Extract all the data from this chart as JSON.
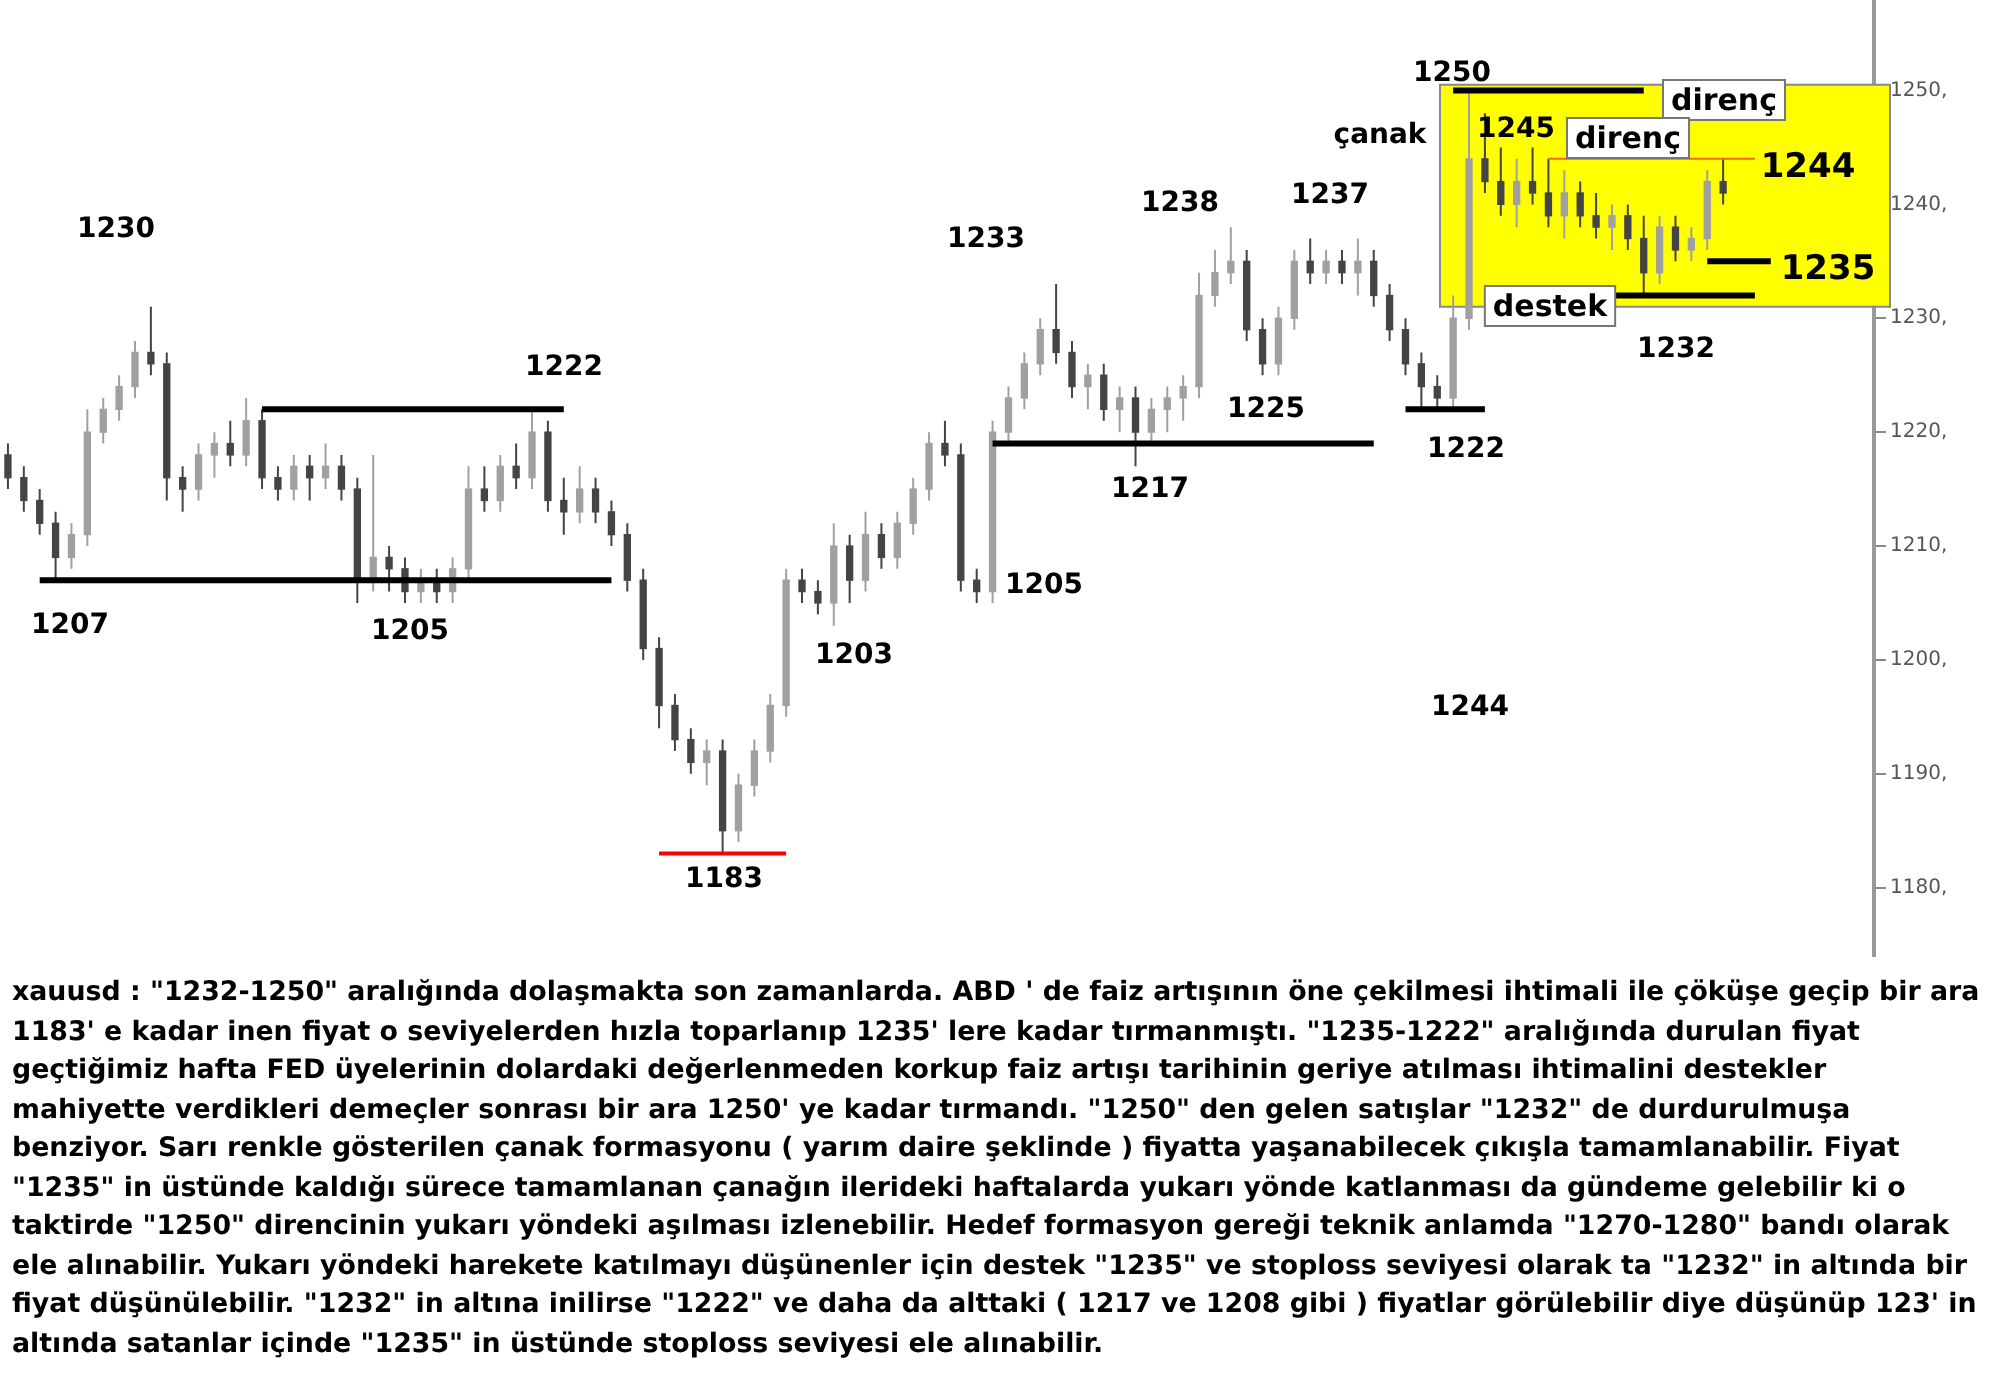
{
  "chart_data": {
    "type": "candlestick",
    "categories": [
      null,
      null,
      null,
      null,
      null,
      null,
      null,
      null,
      null,
      null,
      null,
      null,
      null,
      null,
      null,
      null,
      null,
      null,
      null,
      null,
      null,
      null,
      null,
      null,
      null,
      null,
      null,
      null,
      null,
      null,
      null,
      null,
      null,
      null,
      null,
      null,
      null,
      null,
      null,
      null,
      null,
      null,
      null,
      null,
      null,
      null,
      null,
      null,
      null,
      null,
      null,
      null,
      null,
      null,
      null,
      null,
      null,
      null,
      null,
      null,
      null,
      null,
      null,
      null,
      null,
      null,
      null,
      null,
      null,
      null,
      null,
      null,
      null,
      null,
      null,
      null,
      null,
      null,
      null,
      null,
      null,
      null,
      null,
      null,
      null,
      null,
      null,
      null,
      null,
      null,
      null,
      null,
      null,
      null,
      null,
      null,
      null,
      null,
      null,
      null,
      null,
      null,
      null,
      null,
      null,
      null,
      null,
      null,
      null,
      null,
      null,
      null,
      null,
      null,
      null,
      null,
      null,
      null
    ],
    "ohlc": [
      [
        1218,
        1219,
        1215,
        1216
      ],
      [
        1216,
        1217,
        1213,
        1214
      ],
      [
        1214,
        1215,
        1211,
        1212
      ],
      [
        1212,
        1213,
        1207,
        1209
      ],
      [
        1209,
        1212,
        1208,
        1211
      ],
      [
        1211,
        1222,
        1210,
        1220
      ],
      [
        1220,
        1223,
        1219,
        1222
      ],
      [
        1222,
        1225,
        1221,
        1224
      ],
      [
        1224,
        1228,
        1223,
        1227
      ],
      [
        1227,
        1231,
        1225,
        1226
      ],
      [
        1226,
        1227,
        1214,
        1216
      ],
      [
        1216,
        1217,
        1213,
        1215
      ],
      [
        1215,
        1219,
        1214,
        1218
      ],
      [
        1218,
        1220,
        1216,
        1219
      ],
      [
        1219,
        1221,
        1217,
        1218
      ],
      [
        1218,
        1223,
        1217,
        1221
      ],
      [
        1221,
        1222,
        1215,
        1216
      ],
      [
        1216,
        1217,
        1214,
        1215
      ],
      [
        1215,
        1218,
        1214,
        1217
      ],
      [
        1217,
        1218,
        1214,
        1216
      ],
      [
        1216,
        1219,
        1215,
        1217
      ],
      [
        1217,
        1218,
        1214,
        1215
      ],
      [
        1215,
        1216,
        1205,
        1207
      ],
      [
        1207,
        1218,
        1206,
        1209
      ],
      [
        1209,
        1210,
        1206,
        1208
      ],
      [
        1208,
        1209,
        1205,
        1206
      ],
      [
        1206,
        1208,
        1205,
        1207
      ],
      [
        1207,
        1208,
        1205,
        1206
      ],
      [
        1206,
        1209,
        1205,
        1208
      ],
      [
        1208,
        1217,
        1207,
        1215
      ],
      [
        1215,
        1217,
        1213,
        1214
      ],
      [
        1214,
        1218,
        1213,
        1217
      ],
      [
        1217,
        1219,
        1215,
        1216
      ],
      [
        1216,
        1222,
        1215,
        1220
      ],
      [
        1220,
        1221,
        1213,
        1214
      ],
      [
        1214,
        1216,
        1211,
        1213
      ],
      [
        1213,
        1217,
        1212,
        1215
      ],
      [
        1215,
        1216,
        1212,
        1213
      ],
      [
        1213,
        1214,
        1210,
        1211
      ],
      [
        1211,
        1212,
        1206,
        1207
      ],
      [
        1207,
        1208,
        1200,
        1201
      ],
      [
        1201,
        1202,
        1194,
        1196
      ],
      [
        1196,
        1197,
        1192,
        1193
      ],
      [
        1193,
        1194,
        1190,
        1191
      ],
      [
        1191,
        1193,
        1189,
        1192
      ],
      [
        1192,
        1193,
        1183,
        1185
      ],
      [
        1185,
        1190,
        1184,
        1189
      ],
      [
        1189,
        1193,
        1188,
        1192
      ],
      [
        1192,
        1197,
        1191,
        1196
      ],
      [
        1196,
        1208,
        1195,
        1207
      ],
      [
        1207,
        1208,
        1205,
        1206
      ],
      [
        1206,
        1207,
        1204,
        1205
      ],
      [
        1205,
        1212,
        1203,
        1210
      ],
      [
        1210,
        1211,
        1205,
        1207
      ],
      [
        1207,
        1213,
        1206,
        1211
      ],
      [
        1211,
        1212,
        1208,
        1209
      ],
      [
        1209,
        1213,
        1208,
        1212
      ],
      [
        1212,
        1216,
        1211,
        1215
      ],
      [
        1215,
        1220,
        1214,
        1219
      ],
      [
        1219,
        1221,
        1217,
        1218
      ],
      [
        1218,
        1219,
        1206,
        1207
      ],
      [
        1207,
        1208,
        1205,
        1206
      ],
      [
        1206,
        1221,
        1205,
        1220
      ],
      [
        1220,
        1224,
        1219,
        1223
      ],
      [
        1223,
        1227,
        1222,
        1226
      ],
      [
        1226,
        1230,
        1225,
        1229
      ],
      [
        1229,
        1233,
        1226,
        1227
      ],
      [
        1227,
        1228,
        1223,
        1224
      ],
      [
        1224,
        1226,
        1222,
        1225
      ],
      [
        1225,
        1226,
        1221,
        1222
      ],
      [
        1222,
        1224,
        1220,
        1223
      ],
      [
        1223,
        1224,
        1217,
        1220
      ],
      [
        1220,
        1223,
        1219,
        1222
      ],
      [
        1222,
        1224,
        1220,
        1223
      ],
      [
        1223,
        1225,
        1221,
        1224
      ],
      [
        1224,
        1234,
        1223,
        1232
      ],
      [
        1232,
        1236,
        1231,
        1234
      ],
      [
        1234,
        1238,
        1233,
        1235
      ],
      [
        1235,
        1236,
        1228,
        1229
      ],
      [
        1229,
        1230,
        1225,
        1226
      ],
      [
        1226,
        1231,
        1225,
        1230
      ],
      [
        1230,
        1236,
        1229,
        1235
      ],
      [
        1235,
        1237,
        1233,
        1234
      ],
      [
        1234,
        1236,
        1233,
        1235
      ],
      [
        1235,
        1236,
        1233,
        1234
      ],
      [
        1234,
        1237,
        1232,
        1235
      ],
      [
        1235,
        1236,
        1231,
        1232
      ],
      [
        1232,
        1233,
        1228,
        1229
      ],
      [
        1229,
        1230,
        1225,
        1226
      ],
      [
        1226,
        1227,
        1222,
        1224
      ],
      [
        1224,
        1225,
        1222,
        1223
      ],
      [
        1223,
        1232,
        1222,
        1230
      ],
      [
        1230,
        1250,
        1229,
        1244
      ],
      [
        1244,
        1248,
        1241,
        1242
      ],
      [
        1242,
        1245,
        1239,
        1240
      ],
      [
        1240,
        1244,
        1238,
        1242
      ],
      [
        1242,
        1245,
        1240,
        1241
      ],
      [
        1241,
        1244,
        1238,
        1239
      ],
      [
        1239,
        1243,
        1237,
        1241
      ],
      [
        1241,
        1242,
        1238,
        1239
      ],
      [
        1239,
        1241,
        1237,
        1238
      ],
      [
        1238,
        1240,
        1236,
        1239
      ],
      [
        1239,
        1240,
        1236,
        1237
      ],
      [
        1237,
        1239,
        1232,
        1234
      ],
      [
        1234,
        1239,
        1233,
        1238
      ],
      [
        1238,
        1239,
        1235,
        1236
      ],
      [
        1236,
        1238,
        1235,
        1237
      ],
      [
        1237,
        1243,
        1236,
        1242
      ],
      [
        1242,
        1244,
        1240,
        1241
      ],
      null,
      null,
      null,
      null,
      null,
      null,
      null,
      null,
      null
    ],
    "colors": [
      "#444444",
      "#444444",
      "#444444",
      "#444444",
      "#a0a0a0",
      "#a0a0a0",
      "#a0a0a0",
      "#a0a0a0",
      "#a0a0a0",
      "#444444",
      "#444444",
      "#444444",
      "#a0a0a0",
      "#a0a0a0",
      "#444444",
      "#a0a0a0",
      "#444444",
      "#444444",
      "#a0a0a0",
      "#444444",
      "#a0a0a0",
      "#444444",
      "#444444",
      "#a0a0a0",
      "#444444",
      "#444444",
      "#a0a0a0",
      "#444444",
      "#a0a0a0",
      "#a0a0a0",
      "#444444",
      "#a0a0a0",
      "#444444",
      "#a0a0a0",
      "#444444",
      "#444444",
      "#a0a0a0",
      "#444444",
      "#444444",
      "#444444",
      "#444444",
      "#444444",
      "#444444",
      "#444444",
      "#a0a0a0",
      "#444444",
      "#a0a0a0",
      "#a0a0a0",
      "#a0a0a0",
      "#a0a0a0",
      "#444444",
      "#444444",
      "#a0a0a0",
      "#444444",
      "#a0a0a0",
      "#444444",
      "#a0a0a0",
      "#a0a0a0",
      "#a0a0a0",
      "#444444",
      "#444444",
      "#444444",
      "#a0a0a0",
      "#a0a0a0",
      "#a0a0a0",
      "#a0a0a0",
      "#444444",
      "#444444",
      "#a0a0a0",
      "#444444",
      "#a0a0a0",
      "#444444",
      "#a0a0a0",
      "#a0a0a0",
      "#a0a0a0",
      "#a0a0a0",
      "#a0a0a0",
      "#a0a0a0",
      "#444444",
      "#444444",
      "#a0a0a0",
      "#a0a0a0",
      "#444444",
      "#a0a0a0",
      "#444444",
      "#a0a0a0",
      "#444444",
      "#444444",
      "#444444",
      "#444444",
      "#444444",
      "#a0a0a0",
      "#a0a0a0",
      "#444444",
      "#444444",
      "#a0a0a0",
      "#444444",
      "#444444",
      "#a0a0a0",
      "#444444",
      "#444444",
      "#a0a0a0",
      "#444444",
      "#444444",
      "#a0a0a0",
      "#444444",
      "#a0a0a0",
      "#a0a0a0",
      "#444444",
      null,
      null,
      null,
      null,
      null,
      null,
      null,
      null,
      null
    ],
    "series": [
      {
        "type": "line",
        "color": "#000000",
        "values": [
          null,
          null,
          1207,
          1207,
          1207,
          1207,
          1207,
          1207,
          1207,
          1207,
          1207,
          1207,
          1207,
          1207,
          1207,
          1207,
          1207,
          1207,
          1207,
          1207,
          1207,
          1207,
          1207,
          1207,
          1207,
          1207,
          1207,
          1207,
          1207,
          1207,
          1207,
          1207,
          1207,
          1207,
          1207,
          1207,
          1207,
          1207,
          1207,
          null,
          null,
          null,
          null,
          null,
          null,
          null,
          null,
          null,
          null,
          null,
          null,
          null,
          null,
          null,
          null,
          null,
          null,
          null,
          null,
          null,
          null,
          null,
          null,
          null,
          null,
          null,
          null,
          null,
          null,
          null,
          null,
          null,
          null,
          null,
          null,
          null,
          null,
          null,
          null,
          null,
          null,
          null,
          null,
          null,
          null,
          null,
          null,
          null,
          null,
          null,
          null,
          null,
          null,
          null,
          null,
          null,
          null,
          null,
          null,
          null,
          null,
          null,
          null,
          null,
          null,
          null,
          null,
          null,
          null,
          null,
          null,
          null,
          null,
          null,
          null,
          null,
          null,
          null
        ]
      },
      {
        "type": "line",
        "color": "#000000",
        "values": [
          null,
          null,
          null,
          null,
          null,
          null,
          null,
          null,
          null,
          null,
          null,
          null,
          null,
          null,
          null,
          null,
          1222,
          1222,
          1222,
          1222,
          1222,
          1222,
          1222,
          1222,
          1222,
          1222,
          1222,
          1222,
          1222,
          1222,
          1222,
          1222,
          1222,
          1222,
          1222,
          1222,
          null,
          null,
          null,
          null,
          null,
          null,
          null,
          null,
          null,
          null,
          null,
          null,
          null,
          null,
          null,
          null,
          null,
          null,
          null,
          null,
          null,
          null,
          null,
          null,
          null,
          null,
          null,
          null,
          null,
          null,
          null,
          null,
          null,
          null,
          null,
          null,
          null,
          null,
          null,
          null,
          null,
          null,
          null,
          null,
          null,
          null,
          null,
          null,
          null,
          null,
          null,
          null,
          null,
          null,
          null,
          null,
          null,
          null,
          null,
          null,
          null,
          null,
          null,
          null,
          null,
          null,
          null,
          null,
          null,
          null,
          null,
          null,
          null,
          null,
          null,
          null,
          null,
          null,
          null,
          null,
          null,
          null
        ]
      },
      {
        "type": "line",
        "color": "#000000",
        "values": [
          null,
          null,
          null,
          null,
          null,
          null,
          null,
          null,
          null,
          null,
          null,
          null,
          null,
          null,
          null,
          null,
          null,
          null,
          null,
          null,
          null,
          null,
          null,
          null,
          null,
          null,
          null,
          null,
          null,
          null,
          null,
          null,
          null,
          null,
          null,
          null,
          null,
          null,
          null,
          null,
          null,
          null,
          null,
          null,
          null,
          null,
          null,
          null,
          null,
          null,
          null,
          null,
          null,
          null,
          null,
          null,
          null,
          null,
          null,
          null,
          null,
          null,
          1219,
          1219,
          1219,
          1219,
          1219,
          1219,
          1219,
          1219,
          1219,
          1219,
          1219,
          1219,
          1219,
          1219,
          1219,
          1219,
          1219,
          1219,
          1219,
          1219,
          1219,
          1219,
          1219,
          1219,
          1219,
          null,
          null,
          null,
          null,
          null,
          null,
          null,
          null,
          null,
          null,
          null,
          null,
          null,
          null,
          null,
          null,
          null,
          null,
          null,
          null,
          null,
          null,
          null,
          null,
          null,
          null,
          null,
          null,
          null,
          null,
          null
        ]
      },
      {
        "type": "line",
        "color": "#ff0000",
        "values": [
          null,
          null,
          null,
          null,
          null,
          null,
          null,
          null,
          null,
          null,
          null,
          null,
          null,
          null,
          null,
          null,
          null,
          null,
          null,
          null,
          null,
          null,
          null,
          null,
          null,
          null,
          null,
          null,
          null,
          null,
          null,
          null,
          null,
          null,
          null,
          null,
          null,
          null,
          null,
          null,
          null,
          1183,
          1183,
          1183,
          1183,
          1183,
          1183,
          1183,
          1183,
          1183,
          null,
          null,
          null,
          null,
          null,
          null,
          null,
          null,
          null,
          null,
          null,
          null,
          null,
          null,
          null,
          null,
          null,
          null,
          null,
          null,
          null,
          null,
          null,
          null,
          null,
          null,
          null,
          null,
          null,
          null,
          null,
          null,
          null,
          null,
          null,
          null,
          null,
          null,
          null,
          null,
          null,
          null,
          null,
          null,
          null,
          null,
          null,
          null,
          null,
          null,
          null,
          null,
          null,
          null,
          null,
          null,
          null,
          null,
          null,
          null,
          null,
          null,
          null,
          null,
          null,
          null,
          null,
          null
        ]
      },
      {
        "type": "line",
        "color": "#000000",
        "values": [
          null,
          null,
          null,
          null,
          null,
          null,
          null,
          null,
          null,
          null,
          null,
          null,
          null,
          null,
          null,
          null,
          null,
          null,
          null,
          null,
          null,
          null,
          null,
          null,
          null,
          null,
          null,
          null,
          null,
          null,
          null,
          null,
          null,
          null,
          null,
          null,
          null,
          null,
          null,
          null,
          null,
          null,
          null,
          null,
          null,
          null,
          null,
          null,
          null,
          null,
          null,
          null,
          null,
          null,
          null,
          null,
          null,
          null,
          null,
          null,
          null,
          null,
          null,
          null,
          null,
          null,
          null,
          null,
          null,
          null,
          null,
          null,
          null,
          null,
          null,
          null,
          null,
          null,
          null,
          null,
          null,
          null,
          null,
          null,
          null,
          null,
          null,
          null,
          1222,
          1222,
          1222,
          1222,
          1222,
          1222,
          null,
          null,
          null,
          null,
          null,
          null,
          null,
          null,
          null,
          null,
          null,
          null,
          null,
          null,
          null,
          null,
          null,
          null,
          null,
          null,
          null,
          null,
          null,
          null
        ]
      },
      {
        "type": "line",
        "color": "#000000",
        "values": [
          null,
          null,
          null,
          null,
          null,
          null,
          null,
          null,
          null,
          null,
          null,
          null,
          null,
          null,
          null,
          null,
          null,
          null,
          null,
          null,
          null,
          null,
          null,
          null,
          null,
          null,
          null,
          null,
          null,
          null,
          null,
          null,
          null,
          null,
          null,
          null,
          null,
          null,
          null,
          null,
          null,
          null,
          null,
          null,
          null,
          null,
          null,
          null,
          null,
          null,
          null,
          null,
          null,
          null,
          null,
          null,
          null,
          null,
          null,
          null,
          null,
          null,
          null,
          null,
          null,
          null,
          null,
          null,
          null,
          null,
          null,
          null,
          null,
          null,
          null,
          null,
          null,
          null,
          null,
          null,
          null,
          null,
          null,
          null,
          null,
          null,
          null,
          null,
          null,
          null,
          null,
          1250,
          1250,
          1250,
          1250,
          1250,
          1250,
          1250,
          1250,
          1250,
          1250,
          1250,
          1250,
          1250,
          null,
          null,
          null,
          null,
          null,
          null,
          null,
          null,
          null,
          null,
          null,
          null,
          null,
          null
        ]
      },
      {
        "type": "line",
        "color": "#ff6600",
        "values": [
          null,
          null,
          null,
          null,
          null,
          null,
          null,
          null,
          null,
          null,
          null,
          null,
          null,
          null,
          null,
          null,
          null,
          null,
          null,
          null,
          null,
          null,
          null,
          null,
          null,
          null,
          null,
          null,
          null,
          null,
          null,
          null,
          null,
          null,
          null,
          null,
          null,
          null,
          null,
          null,
          null,
          null,
          null,
          null,
          null,
          null,
          null,
          null,
          null,
          null,
          null,
          null,
          null,
          null,
          null,
          null,
          null,
          null,
          null,
          null,
          null,
          null,
          null,
          null,
          null,
          null,
          null,
          null,
          null,
          null,
          null,
          null,
          null,
          null,
          null,
          null,
          null,
          null,
          null,
          null,
          null,
          null,
          null,
          null,
          null,
          null,
          null,
          null,
          null,
          null,
          null,
          null,
          null,
          null,
          null,
          null,
          null,
          1244,
          1244,
          1244,
          1244,
          1244,
          1244,
          1244,
          1244,
          1244,
          1244,
          1244,
          1244,
          1244,
          1244,
          null,
          null,
          null,
          null,
          null,
          null,
          null
        ]
      },
      {
        "type": "line",
        "color": "#000000",
        "values": [
          null,
          null,
          null,
          null,
          null,
          null,
          null,
          null,
          null,
          null,
          null,
          null,
          null,
          null,
          null,
          null,
          null,
          null,
          null,
          null,
          null,
          null,
          null,
          null,
          null,
          null,
          null,
          null,
          null,
          null,
          null,
          null,
          null,
          null,
          null,
          null,
          null,
          null,
          null,
          null,
          null,
          null,
          null,
          null,
          null,
          null,
          null,
          null,
          null,
          null,
          null,
          null,
          null,
          null,
          null,
          null,
          null,
          null,
          null,
          null,
          null,
          null,
          null,
          null,
          null,
          null,
          null,
          null,
          null,
          null,
          null,
          null,
          null,
          null,
          null,
          null,
          null,
          null,
          null,
          null,
          null,
          null,
          null,
          null,
          null,
          null,
          null,
          null,
          null,
          null,
          null,
          null,
          null,
          null,
          null,
          null,
          null,
          null,
          null,
          null,
          null,
          null,
          null,
          null,
          null,
          null,
          null,
          1235,
          1235,
          1235,
          1235,
          1235,
          null,
          null,
          null,
          null,
          null,
          null
        ]
      },
      {
        "type": "line",
        "color": "#000000",
        "values": [
          null,
          null,
          null,
          null,
          null,
          null,
          null,
          null,
          null,
          null,
          null,
          null,
          null,
          null,
          null,
          null,
          null,
          null,
          null,
          null,
          null,
          null,
          null,
          null,
          null,
          null,
          null,
          null,
          null,
          null,
          null,
          null,
          null,
          null,
          null,
          null,
          null,
          null,
          null,
          null,
          null,
          null,
          null,
          null,
          null,
          null,
          null,
          null,
          null,
          null,
          null,
          null,
          null,
          null,
          null,
          null,
          null,
          null,
          null,
          null,
          null,
          null,
          null,
          null,
          null,
          null,
          null,
          null,
          null,
          null,
          null,
          null,
          null,
          null,
          null,
          null,
          null,
          null,
          null,
          null,
          null,
          null,
          null,
          null,
          null,
          null,
          null,
          null,
          null,
          null,
          null,
          null,
          null,
          null,
          null,
          null,
          null,
          null,
          null,
          null,
          null,
          1232,
          1232,
          1232,
          1232,
          1232,
          1232,
          1232,
          1232,
          1232,
          1232,
          null,
          null,
          null,
          null,
          null,
          null,
          null
        ]
      }
    ],
    "ylim": [
      1174,
      1259
    ],
    "yticks": [
      {
        "value": 1180,
        "label": "1180,"
      },
      {
        "value": 1190,
        "label": "1190,"
      },
      {
        "value": 1200,
        "label": "1200,"
      },
      {
        "value": 1210,
        "label": "1210,"
      },
      {
        "value": 1220,
        "label": "1220,"
      },
      {
        "value": 1230,
        "label": "1230,"
      },
      {
        "value": 1240,
        "label": "1240,"
      },
      {
        "value": 1250,
        "label": "1250,"
      }
    ],
    "tick_labels": "y",
    "grid": false,
    "legend": false,
    "bands": [
      {
        "axis": "y",
        "from": 1231,
        "to": 1250.5,
        "color": "#ffff00"
      }
    ],
    "annotations": [
      "1230",
      "1207",
      "1205",
      "1222",
      "1183",
      "1203",
      "1205",
      "1233",
      "1217",
      "1238",
      "1225",
      "1237",
      "1222",
      "1250",
      "çanak",
      "1245",
      "direnç",
      "direnç",
      "1244",
      "1235",
      "destek",
      "1232",
      "1244",
      "xauusd : \"1232-1250\" aralığında dolaşmakta son zamanlarda. ABD ' de faiz artışının öne çekilmesi ihtimali ile çöküşe geçip bir ara 1183' e kadar inen fiyat o seviyelerden hızla toparlanıp 1235' lere kadar tırmanmıştı. \"1235-1222\" aralığında durulan fiyat geçtiğimiz hafta FED üyelerinin dolardaki değerlenmeden korkup faiz artışı tarihinin geriye atılması ihtimalini destekler mahiyette verdikleri demeçler sonrası bir ara 1250' ye kadar tırmandı. \"1250\" den gelen satışlar \"1232\" de durdurulmuşa benziyor. Sarı renkle gösterilen çanak formasyonu ( yarım daire şeklinde ) fiyatta yaşanabilecek çıkışla tamamlanabilir. Fiyat \"1235\" in üstünde kaldığı sürece tamamlanan çanağın ilerideki haftalarda yukarı yönde katlanması da gündeme gelebilir ki o taktirde \"1250\" direncinin yukarı yöndeki aşılması izlenebilir. Hedef formasyon gereği teknik anlamda \"1270-1280\" bandı olarak ele alınabilir. Yukarı yöndeki harekete katılmayı düşünenler için destek \"1235\" ve stoploss seviyesi olarak ta \"1232\" in altında bir fiyat düşünülebilir. \"1232\" in altına inilirse \"1222\" ve daha da alttaki ( 1217 ve 1208 gibi ) fiyatlar görülebilir diye düşünüp 123' in altında satanlar içinde \"1235\" in üstünde stoploss seviyesi ele alınabilir."
    ]
  }
}
